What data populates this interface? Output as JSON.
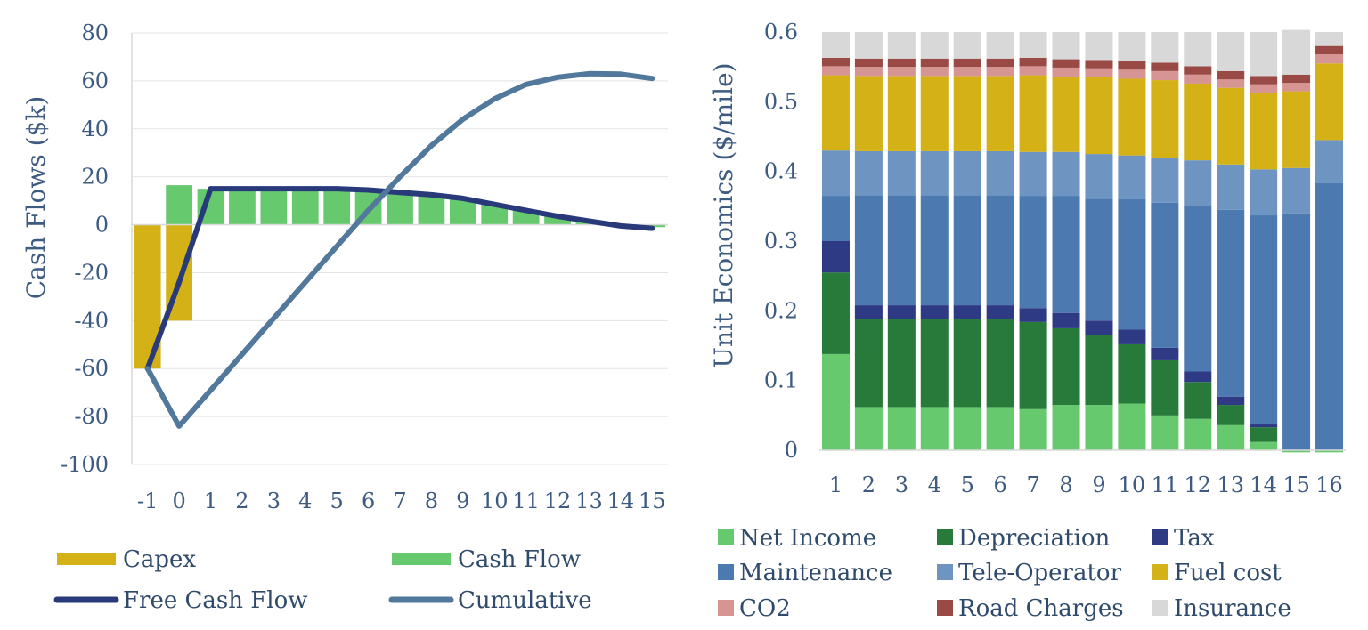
{
  "chart_data": [
    {
      "type": "bar",
      "ylabel": "Cash Flows ($k)",
      "ylim": [
        -100,
        80
      ],
      "yticks": [
        80,
        60,
        40,
        20,
        0,
        -20,
        -40,
        -60,
        -80,
        -100
      ],
      "categories": [
        "-1",
        "0",
        "1",
        "2",
        "3",
        "4",
        "5",
        "6",
        "7",
        "8",
        "9",
        "10",
        "11",
        "12",
        "13",
        "14",
        "15"
      ],
      "grid": true,
      "legend_position": "bottom",
      "series": [
        {
          "name": "Capex",
          "kind": "bar",
          "color": "#d4b217",
          "values": [
            -60,
            -40,
            0,
            0,
            0,
            0,
            0,
            0,
            0,
            0,
            0,
            0,
            0,
            0,
            0,
            0,
            0
          ]
        },
        {
          "name": "Cash Flow",
          "kind": "bar",
          "color": "#66c96e",
          "values": [
            0,
            16.5,
            15,
            15,
            15,
            15,
            15,
            15,
            14,
            13,
            11,
            8.5,
            6,
            3.5,
            1.5,
            0,
            -1
          ]
        },
        {
          "name": "Free Cash Flow",
          "kind": "line",
          "color": "#283a7a",
          "values": [
            -60,
            -24,
            15,
            15,
            15,
            15,
            15,
            14.5,
            13.5,
            12.5,
            11,
            8.5,
            6,
            3.5,
            1.5,
            -0.5,
            -1.5
          ]
        },
        {
          "name": "Cumulative",
          "kind": "line",
          "color": "#52799b",
          "values": [
            -60,
            -84,
            -69,
            -54,
            -39,
            -24,
            -9,
            6,
            20,
            33,
            44,
            52.5,
            58.5,
            61.5,
            63,
            62.8,
            61
          ]
        }
      ]
    },
    {
      "type": "bar",
      "stacked": true,
      "ylabel": "Unit Economics ($/mile)",
      "ylim": [
        0,
        0.6
      ],
      "yticks": [
        0.6,
        0.5,
        0.4,
        0.3,
        0.2,
        0.1,
        0
      ],
      "ytick_labels": [
        "0.6",
        "0.5",
        "0.4",
        "0.3",
        "0.2",
        "0.1",
        "0"
      ],
      "categories": [
        "1",
        "2",
        "3",
        "4",
        "5",
        "6",
        "7",
        "8",
        "9",
        "10",
        "11",
        "12",
        "13",
        "14",
        "15",
        "16"
      ],
      "legend_position": "bottom",
      "series": [
        {
          "name": "Net Income",
          "color": "#66c96e",
          "values": [
            0.138,
            0.062,
            0.062,
            0.062,
            0.062,
            0.062,
            0.059,
            0.065,
            0.065,
            0.067,
            0.05,
            0.045,
            0.036,
            0.012,
            -0.003,
            -0.003
          ]
        },
        {
          "name": "Depreciation",
          "color": "#287a3a",
          "values": [
            0.117,
            0.126,
            0.126,
            0.126,
            0.126,
            0.126,
            0.125,
            0.11,
            0.1,
            0.085,
            0.079,
            0.053,
            0.029,
            0.021,
            0,
            0
          ]
        },
        {
          "name": "Tax",
          "color": "#2e3b84",
          "values": [
            0.045,
            0.02,
            0.02,
            0.02,
            0.02,
            0.02,
            0.02,
            0.022,
            0.021,
            0.021,
            0.018,
            0.015,
            0.012,
            0.004,
            0,
            0
          ]
        },
        {
          "name": "Maintenance",
          "color": "#4c7ab0",
          "values": [
            0.065,
            0.158,
            0.158,
            0.158,
            0.158,
            0.158,
            0.161,
            0.168,
            0.175,
            0.187,
            0.208,
            0.238,
            0.268,
            0.3,
            0.34,
            0.383
          ]
        },
        {
          "name": "Tele-Operator",
          "color": "#6e95c2",
          "values": [
            0.065,
            0.063,
            0.063,
            0.063,
            0.063,
            0.063,
            0.063,
            0.063,
            0.064,
            0.063,
            0.065,
            0.065,
            0.065,
            0.066,
            0.065,
            0.062
          ]
        },
        {
          "name": "Fuel cost",
          "color": "#d4b217",
          "values": [
            0.108,
            0.108,
            0.108,
            0.108,
            0.108,
            0.108,
            0.11,
            0.108,
            0.11,
            0.11,
            0.111,
            0.11,
            0.11,
            0.11,
            0.11,
            0.11
          ]
        },
        {
          "name": "CO2",
          "color": "#d69593",
          "values": [
            0.013,
            0.013,
            0.013,
            0.013,
            0.013,
            0.013,
            0.013,
            0.013,
            0.013,
            0.013,
            0.013,
            0.013,
            0.012,
            0.012,
            0.012,
            0.013
          ]
        },
        {
          "name": "Road Charges",
          "color": "#9a4a44",
          "values": [
            0.012,
            0.012,
            0.012,
            0.012,
            0.012,
            0.012,
            0.012,
            0.012,
            0.012,
            0.012,
            0.012,
            0.012,
            0.012,
            0.012,
            0.012,
            0.012
          ]
        },
        {
          "name": "Insurance",
          "color": "#d8d8d8",
          "values": [
            0.037,
            0.038,
            0.038,
            0.038,
            0.038,
            0.038,
            0.037,
            0.039,
            0.04,
            0.042,
            0.044,
            0.049,
            0.056,
            0.063,
            0.064,
            0.02
          ]
        }
      ]
    }
  ]
}
